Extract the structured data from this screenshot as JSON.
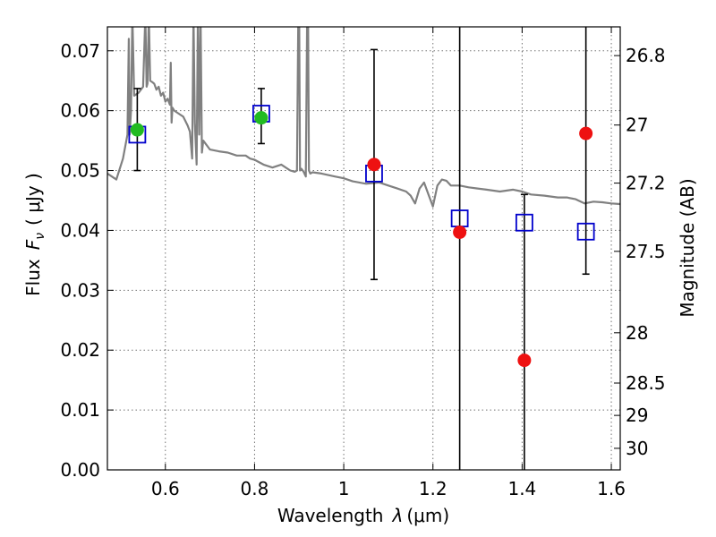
{
  "chart_data": {
    "type": "scatter",
    "title": "",
    "xlabel": "Wavelength",
    "xlabel_symbol": "λ",
    "xlabel_unit": "(μm)",
    "ylabel": "Flux",
    "ylabel_symbol": "F",
    "ylabel_subscript": "ν",
    "ylabel_unit": "( μJy )",
    "y2label": "Magnitude (AB)",
    "xlim": [
      0.47,
      1.62
    ],
    "ylim": [
      0.0,
      0.074
    ],
    "x_ticks": [
      0.6,
      0.8,
      1.0,
      1.2,
      1.4,
      1.6
    ],
    "x_tick_labels": [
      "0.6",
      "0.8",
      "1",
      "1.2",
      "1.4",
      "1.6"
    ],
    "y_ticks": [
      0.0,
      0.01,
      0.02,
      0.03,
      0.04,
      0.05,
      0.06,
      0.07
    ],
    "y_tick_labels": [
      "0.00",
      "0.01",
      "0.02",
      "0.03",
      "0.04",
      "0.05",
      "0.06",
      "0.07"
    ],
    "y2_ticks": [
      {
        "flux": 0.0692,
        "label": "26.8"
      },
      {
        "flux": 0.0576,
        "label": "27"
      },
      {
        "flux": 0.0479,
        "label": "27.2"
      },
      {
        "flux": 0.0365,
        "label": "27.5"
      },
      {
        "flux": 0.0229,
        "label": "28"
      },
      {
        "flux": 0.0145,
        "label": "28.5"
      },
      {
        "flux": 0.0091,
        "label": "29"
      },
      {
        "flux": 0.0036,
        "label": "30"
      }
    ],
    "grid": true,
    "series": [
      {
        "name": "model spectrum",
        "kind": "line",
        "color": "#808080",
        "x": [
          0.47,
          0.49,
          0.505,
          0.515,
          0.518,
          0.52,
          0.523,
          0.526,
          0.53,
          0.54,
          0.55,
          0.555,
          0.558,
          0.56,
          0.563,
          0.566,
          0.57,
          0.575,
          0.58,
          0.585,
          0.59,
          0.595,
          0.6,
          0.605,
          0.61,
          0.612,
          0.614,
          0.616,
          0.62,
          0.63,
          0.64,
          0.65,
          0.655,
          0.66,
          0.663,
          0.666,
          0.67,
          0.673,
          0.676,
          0.679,
          0.682,
          0.685,
          0.69,
          0.7,
          0.72,
          0.74,
          0.76,
          0.78,
          0.79,
          0.8,
          0.82,
          0.84,
          0.86,
          0.88,
          0.89,
          0.895,
          0.898,
          0.9,
          0.902,
          0.905,
          0.91,
          0.915,
          0.918,
          0.92,
          0.922,
          0.925,
          0.93,
          0.95,
          0.98,
          1.0,
          1.02,
          1.05,
          1.08,
          1.1,
          1.12,
          1.14,
          1.15,
          1.16,
          1.17,
          1.18,
          1.19,
          1.2,
          1.21,
          1.22,
          1.23,
          1.24,
          1.26,
          1.28,
          1.3,
          1.32,
          1.35,
          1.38,
          1.4,
          1.42,
          1.45,
          1.48,
          1.5,
          1.52,
          1.54,
          1.56,
          1.58,
          1.6,
          1.62
        ],
        "y": [
          0.0495,
          0.0485,
          0.052,
          0.056,
          0.072,
          0.056,
          0.06,
          0.076,
          0.0625,
          0.063,
          0.064,
          0.076,
          0.064,
          0.0645,
          0.076,
          0.065,
          0.0648,
          0.0645,
          0.0635,
          0.064,
          0.0625,
          0.063,
          0.0615,
          0.062,
          0.061,
          0.068,
          0.058,
          0.0605,
          0.06,
          0.0595,
          0.059,
          0.0575,
          0.0565,
          0.052,
          0.076,
          0.058,
          0.051,
          0.076,
          0.056,
          0.076,
          0.053,
          0.055,
          0.0545,
          0.0535,
          0.0532,
          0.053,
          0.0525,
          0.0525,
          0.052,
          0.0518,
          0.051,
          0.0505,
          0.051,
          0.05,
          0.0498,
          0.05,
          0.076,
          0.076,
          0.05,
          0.0503,
          0.0498,
          0.049,
          0.076,
          0.076,
          0.05,
          0.0495,
          0.0497,
          0.0495,
          0.049,
          0.0487,
          0.0482,
          0.0478,
          0.048,
          0.0475,
          0.047,
          0.0465,
          0.0458,
          0.0445,
          0.047,
          0.048,
          0.046,
          0.044,
          0.0475,
          0.0485,
          0.0483,
          0.0475,
          0.0475,
          0.0472,
          0.047,
          0.0468,
          0.0465,
          0.0468,
          0.0465,
          0.046,
          0.0458,
          0.0455,
          0.0455,
          0.0452,
          0.0445,
          0.0448,
          0.0447,
          0.0445,
          0.0444
        ]
      },
      {
        "name": "model photometry",
        "kind": "open-square",
        "color": "#0000cc",
        "x": [
          0.537,
          0.815,
          1.068,
          1.26,
          1.405,
          1.543
        ],
        "y": [
          0.056,
          0.0595,
          0.0495,
          0.042,
          0.0413,
          0.0398
        ]
      },
      {
        "name": "detections",
        "kind": "filled-circle",
        "color": "#22bb22",
        "x": [
          0.537,
          0.815
        ],
        "y": [
          0.0568,
          0.0588
        ]
      },
      {
        "name": "low-significance measurements",
        "kind": "filled-circle",
        "color": "#ee1111",
        "x": [
          1.068,
          1.26,
          1.405,
          1.543
        ],
        "y": [
          0.051,
          0.0397,
          0.0183,
          0.0562
        ]
      },
      {
        "name": "error bars",
        "kind": "errorbar",
        "color": "#000000",
        "x": [
          0.537,
          0.815,
          1.068,
          1.26,
          1.405,
          1.543
        ],
        "low": [
          0.05,
          0.0545,
          0.0318,
          0.0,
          0.0,
          0.0327
        ],
        "high": [
          0.0637,
          0.0637,
          0.0702,
          0.074,
          0.046,
          0.074
        ],
        "capped_low": [
          true,
          true,
          true,
          false,
          false,
          true
        ],
        "capped_high": [
          true,
          true,
          true,
          false,
          true,
          false
        ]
      }
    ]
  }
}
